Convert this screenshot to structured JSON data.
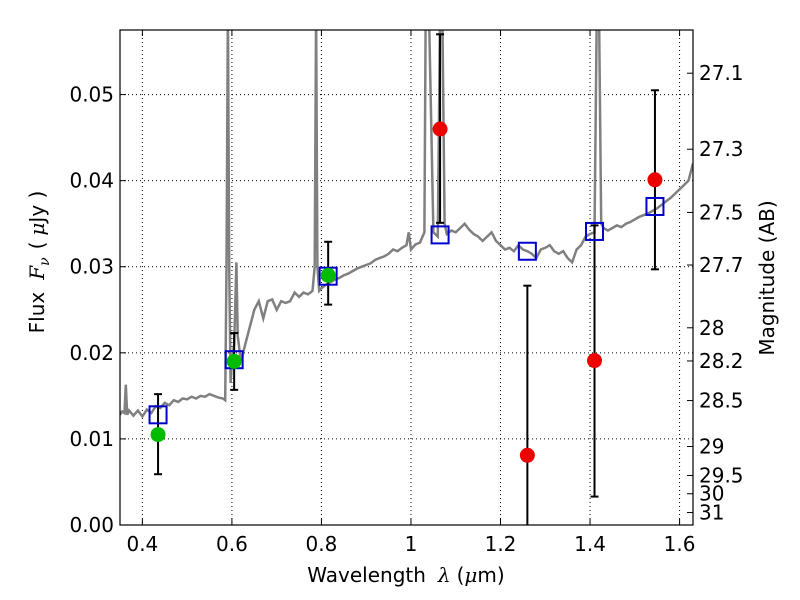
{
  "chart_data": {
    "type": "scatter",
    "title": "",
    "xlabel": {
      "prefix": "Wavelength",
      "symbol": "λ",
      "unit_open": "(",
      "unit_mu": "μ",
      "unit_rest": "m)"
    },
    "ylabel": {
      "prefix": "Flux",
      "symbol": "F",
      "subscript": "ν",
      "unit_open": "(",
      "unit_mu": "μ",
      "unit_rest": "Jy )"
    },
    "y2label": "Magnitude (AB)",
    "xlim": [
      0.35,
      1.63
    ],
    "ylim": [
      0.0,
      0.0575
    ],
    "grid": true,
    "x_ticks": [
      {
        "v": 0.4,
        "label": "0.4"
      },
      {
        "v": 0.6,
        "label": "0.6"
      },
      {
        "v": 0.8,
        "label": "0.8"
      },
      {
        "v": 1.0,
        "label": "1"
      },
      {
        "v": 1.2,
        "label": "1.2"
      },
      {
        "v": 1.4,
        "label": "1.4"
      },
      {
        "v": 1.6,
        "label": "1.6"
      }
    ],
    "y_ticks": [
      {
        "v": 0.0,
        "label": "0.00"
      },
      {
        "v": 0.01,
        "label": "0.01"
      },
      {
        "v": 0.02,
        "label": "0.02"
      },
      {
        "v": 0.03,
        "label": "0.03"
      },
      {
        "v": 0.04,
        "label": "0.04"
      },
      {
        "v": 0.05,
        "label": "0.05"
      }
    ],
    "mag_ticks": [
      {
        "v": 27.1,
        "label": "27.1"
      },
      {
        "v": 27.3,
        "label": "27.3"
      },
      {
        "v": 27.5,
        "label": "27.5"
      },
      {
        "v": 27.7,
        "label": "27.7"
      },
      {
        "v": 28,
        "label": "28"
      },
      {
        "v": 28.2,
        "label": "28.2"
      },
      {
        "v": 28.5,
        "label": "28.5"
      },
      {
        "v": 29,
        "label": "29"
      },
      {
        "v": 29.5,
        "label": "29.5"
      },
      {
        "v": 30,
        "label": "30"
      },
      {
        "v": 31,
        "label": "31"
      }
    ],
    "colors": {
      "spectrum": "#808080",
      "model": "#0000cc",
      "detected": "#00bb00",
      "upper": "#ee0000",
      "errorbar": "#000000"
    },
    "spectrum": [
      [
        0.35,
        0.0128
      ],
      [
        0.355,
        0.0132
      ],
      [
        0.36,
        0.013
      ],
      [
        0.363,
        0.0163
      ],
      [
        0.366,
        0.0128
      ],
      [
        0.37,
        0.0133
      ],
      [
        0.38,
        0.0127
      ],
      [
        0.39,
        0.0133
      ],
      [
        0.4,
        0.0126
      ],
      [
        0.41,
        0.0134
      ],
      [
        0.42,
        0.013
      ],
      [
        0.43,
        0.0138
      ],
      [
        0.44,
        0.0136
      ],
      [
        0.45,
        0.0142
      ],
      [
        0.46,
        0.0139
      ],
      [
        0.47,
        0.0145
      ],
      [
        0.48,
        0.0143
      ],
      [
        0.49,
        0.0147
      ],
      [
        0.5,
        0.0146
      ],
      [
        0.51,
        0.0149
      ],
      [
        0.52,
        0.0147
      ],
      [
        0.53,
        0.015
      ],
      [
        0.54,
        0.0149
      ],
      [
        0.55,
        0.0152
      ],
      [
        0.56,
        0.015
      ],
      [
        0.57,
        0.0148
      ],
      [
        0.58,
        0.0147
      ],
      [
        0.585,
        0.0145
      ],
      [
        0.588,
        0.03
      ],
      [
        0.591,
        0.06
      ],
      [
        0.594,
        0.03
      ],
      [
        0.597,
        0.0165
      ],
      [
        0.6,
        0.019
      ],
      [
        0.605,
        0.021
      ],
      [
        0.61,
        0.0305
      ],
      [
        0.613,
        0.022
      ],
      [
        0.62,
        0.019
      ],
      [
        0.63,
        0.021
      ],
      [
        0.64,
        0.023
      ],
      [
        0.65,
        0.025
      ],
      [
        0.66,
        0.026
      ],
      [
        0.67,
        0.024
      ],
      [
        0.68,
        0.026
      ],
      [
        0.69,
        0.0262
      ],
      [
        0.7,
        0.025
      ],
      [
        0.71,
        0.026
      ],
      [
        0.72,
        0.0258
      ],
      [
        0.73,
        0.026
      ],
      [
        0.74,
        0.027
      ],
      [
        0.75,
        0.0265
      ],
      [
        0.76,
        0.027
      ],
      [
        0.77,
        0.0268
      ],
      [
        0.78,
        0.0272
      ],
      [
        0.785,
        0.03
      ],
      [
        0.788,
        0.06
      ],
      [
        0.791,
        0.03
      ],
      [
        0.795,
        0.0272
      ],
      [
        0.8,
        0.0275
      ],
      [
        0.81,
        0.0279
      ],
      [
        0.82,
        0.0282
      ],
      [
        0.83,
        0.0285
      ],
      [
        0.84,
        0.0287
      ],
      [
        0.85,
        0.029
      ],
      [
        0.86,
        0.0292
      ],
      [
        0.87,
        0.0295
      ],
      [
        0.88,
        0.0298
      ],
      [
        0.89,
        0.03
      ],
      [
        0.9,
        0.0302
      ],
      [
        0.91,
        0.0304
      ],
      [
        0.92,
        0.0308
      ],
      [
        0.93,
        0.031
      ],
      [
        0.94,
        0.0312
      ],
      [
        0.95,
        0.0315
      ],
      [
        0.96,
        0.032
      ],
      [
        0.97,
        0.0318
      ],
      [
        0.98,
        0.0322
      ],
      [
        0.99,
        0.0325
      ],
      [
        0.995,
        0.034
      ],
      [
        1.0,
        0.032
      ],
      [
        1.01,
        0.0326
      ],
      [
        1.02,
        0.0328
      ],
      [
        1.03,
        0.034
      ],
      [
        1.033,
        0.06
      ],
      [
        1.04,
        0.06
      ],
      [
        1.05,
        0.034
      ],
      [
        1.06,
        0.0335
      ],
      [
        1.065,
        0.06
      ],
      [
        1.07,
        0.06
      ],
      [
        1.075,
        0.035
      ],
      [
        1.08,
        0.0338
      ],
      [
        1.09,
        0.0342
      ],
      [
        1.1,
        0.034
      ],
      [
        1.11,
        0.0345
      ],
      [
        1.12,
        0.035
      ],
      [
        1.13,
        0.0343
      ],
      [
        1.14,
        0.0338
      ],
      [
        1.15,
        0.0335
      ],
      [
        1.16,
        0.033
      ],
      [
        1.17,
        0.0335
      ],
      [
        1.18,
        0.034
      ],
      [
        1.19,
        0.033
      ],
      [
        1.2,
        0.0325
      ],
      [
        1.21,
        0.032
      ],
      [
        1.22,
        0.0322
      ],
      [
        1.23,
        0.0318
      ],
      [
        1.24,
        0.0325
      ],
      [
        1.25,
        0.032
      ],
      [
        1.26,
        0.0318
      ],
      [
        1.27,
        0.0315
      ],
      [
        1.28,
        0.031
      ],
      [
        1.29,
        0.032
      ],
      [
        1.3,
        0.0322
      ],
      [
        1.31,
        0.0325
      ],
      [
        1.32,
        0.0318
      ],
      [
        1.33,
        0.0315
      ],
      [
        1.34,
        0.0318
      ],
      [
        1.35,
        0.031
      ],
      [
        1.36,
        0.0305
      ],
      [
        1.37,
        0.032
      ],
      [
        1.38,
        0.0325
      ],
      [
        1.39,
        0.0335
      ],
      [
        1.4,
        0.0338
      ],
      [
        1.41,
        0.034
      ],
      [
        1.415,
        0.06
      ],
      [
        1.42,
        0.06
      ],
      [
        1.425,
        0.035
      ],
      [
        1.43,
        0.0345
      ],
      [
        1.44,
        0.0342
      ],
      [
        1.45,
        0.0345
      ],
      [
        1.46,
        0.0348
      ],
      [
        1.47,
        0.0346
      ],
      [
        1.48,
        0.035
      ],
      [
        1.49,
        0.0352
      ],
      [
        1.5,
        0.0355
      ],
      [
        1.51,
        0.0358
      ],
      [
        1.52,
        0.036
      ],
      [
        1.53,
        0.0362
      ],
      [
        1.54,
        0.0365
      ],
      [
        1.55,
        0.0368
      ],
      [
        1.56,
        0.0372
      ],
      [
        1.57,
        0.0376
      ],
      [
        1.58,
        0.038
      ],
      [
        1.59,
        0.0385
      ],
      [
        1.6,
        0.039
      ],
      [
        1.61,
        0.0395
      ],
      [
        1.62,
        0.04
      ],
      [
        1.63,
        0.042
      ]
    ],
    "model_points": [
      {
        "x": 0.435,
        "y": 0.0128
      },
      {
        "x": 0.605,
        "y": 0.0192
      },
      {
        "x": 0.815,
        "y": 0.0289
      },
      {
        "x": 1.065,
        "y": 0.0337
      },
      {
        "x": 1.26,
        "y": 0.0318
      },
      {
        "x": 1.41,
        "y": 0.0341
      },
      {
        "x": 1.545,
        "y": 0.037
      }
    ],
    "detected_points": [
      {
        "x": 0.435,
        "y": 0.0105,
        "lo": 0.0059,
        "hi": 0.0152
      },
      {
        "x": 0.605,
        "y": 0.019,
        "lo": 0.0157,
        "hi": 0.0223
      },
      {
        "x": 0.815,
        "y": 0.029,
        "lo": 0.0256,
        "hi": 0.0329
      }
    ],
    "red_points": [
      {
        "x": 1.065,
        "y": 0.046,
        "lo": 0.0351,
        "hi": 0.057
      },
      {
        "x": 1.26,
        "y": 0.0081,
        "lo": -0.001,
        "hi": 0.0278
      },
      {
        "x": 1.41,
        "y": 0.0191,
        "lo": 0.0033,
        "hi": 0.0348
      },
      {
        "x": 1.545,
        "y": 0.0401,
        "lo": 0.0297,
        "hi": 0.0505
      }
    ]
  }
}
